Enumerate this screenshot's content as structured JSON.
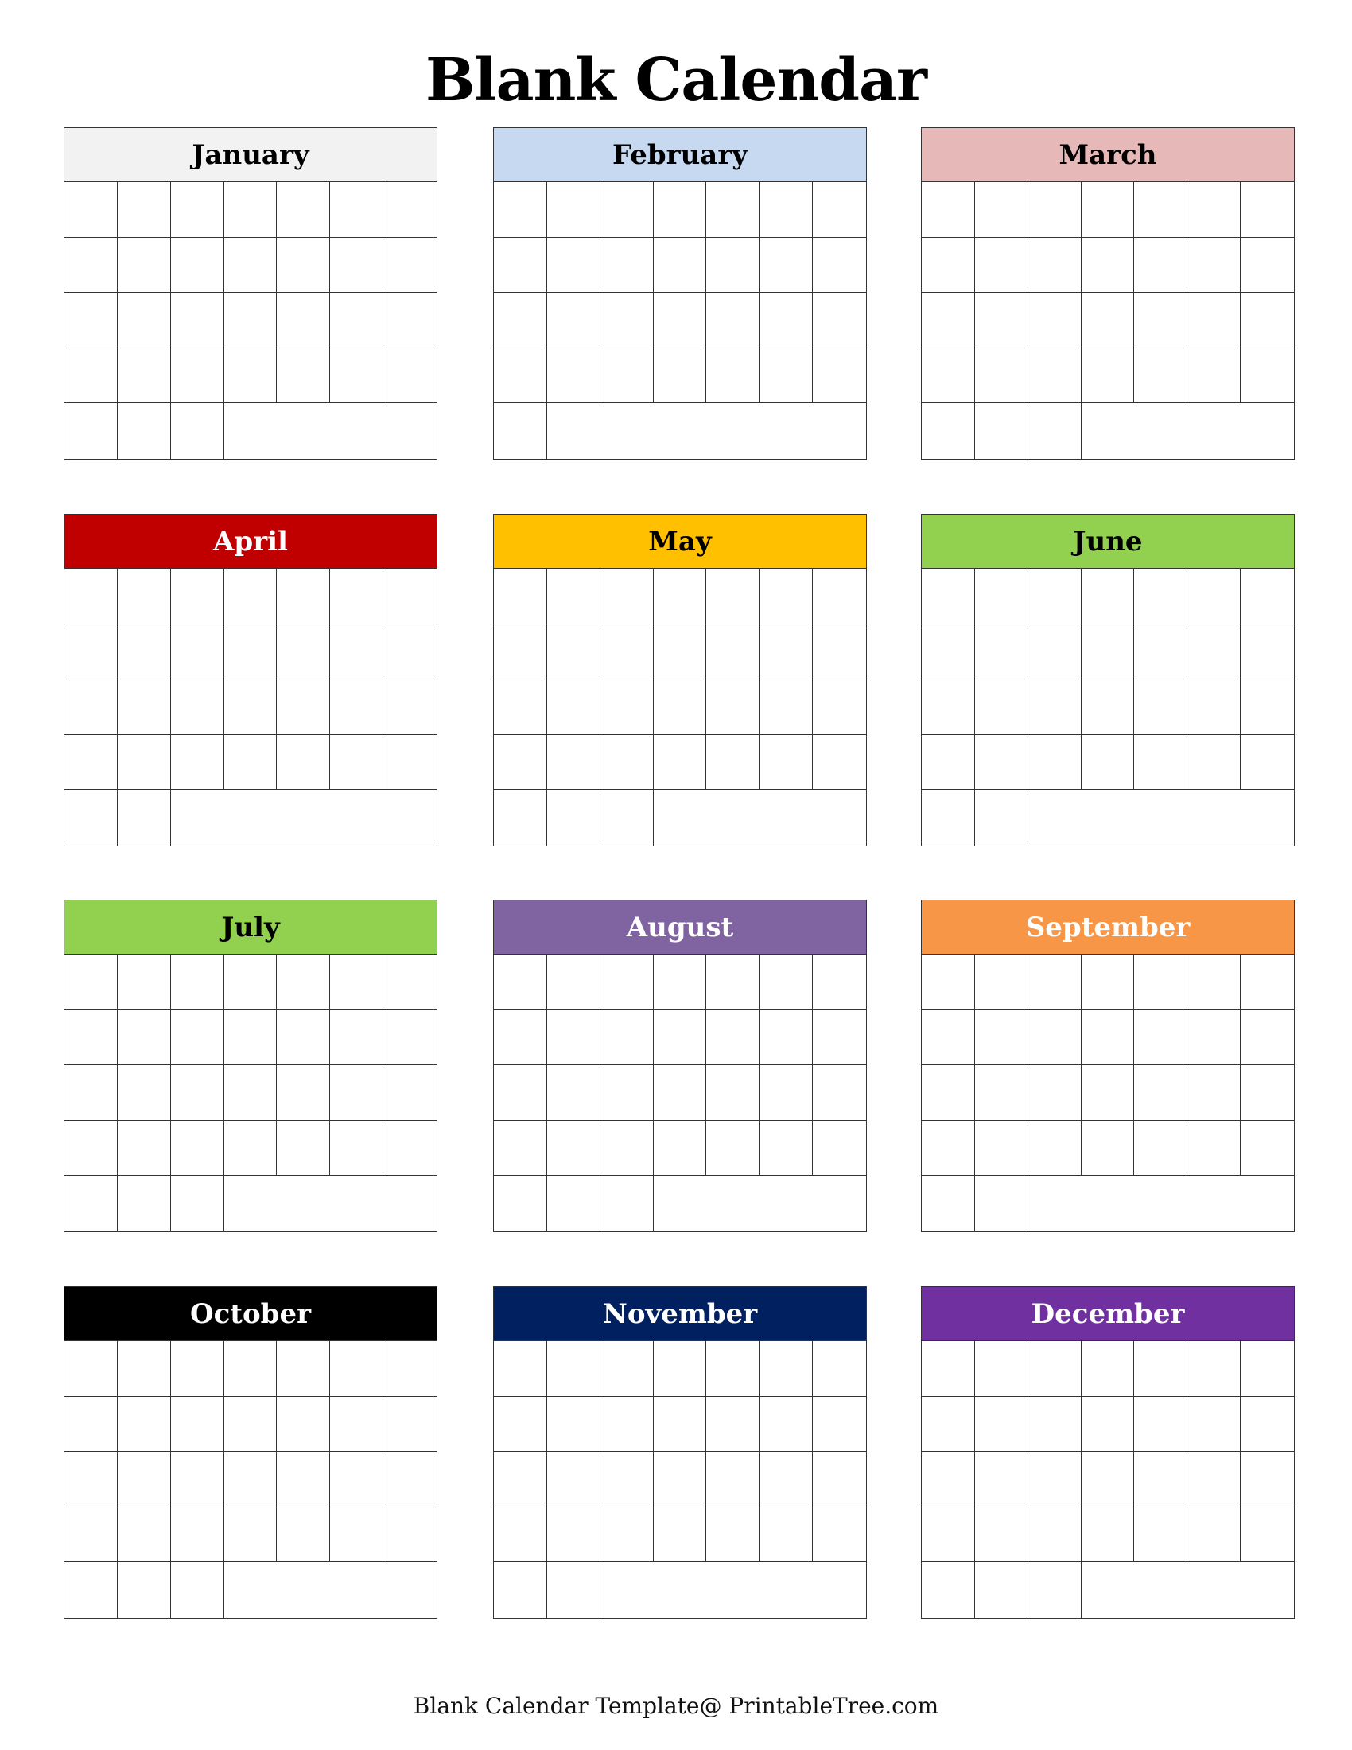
{
  "title": "Blank Calendar",
  "footer": "Blank Calendar Template@ PrintableTree.com",
  "months": [
    {
      "name": "January",
      "color": "#f2f2f2",
      "text_color": "#000000",
      "last_row_cells": 3
    },
    {
      "name": "February",
      "color": "#c6d9f1",
      "text_color": "#000000",
      "last_row_cells": 1
    },
    {
      "name": "March",
      "color": "#e6b8b7",
      "text_color": "#000000",
      "last_row_cells": 3
    },
    {
      "name": "April",
      "color": "#c00000",
      "text_color": "#ffffff",
      "last_row_cells": 2
    },
    {
      "name": "May",
      "color": "#ffc000",
      "text_color": "#000000",
      "last_row_cells": 3
    },
    {
      "name": "June",
      "color": "#92d050",
      "text_color": "#000000",
      "last_row_cells": 2
    },
    {
      "name": "July",
      "color": "#92d050",
      "text_color": "#000000",
      "last_row_cells": 3
    },
    {
      "name": "August",
      "color": "#8064a2",
      "text_color": "#ffffff",
      "last_row_cells": 3
    },
    {
      "name": "September",
      "color": "#f79646",
      "text_color": "#ffffff",
      "last_row_cells": 2
    },
    {
      "name": "October",
      "color": "#000000",
      "text_color": "#ffffff",
      "last_row_cells": 3
    },
    {
      "name": "November",
      "color": "#002060",
      "text_color": "#ffffff",
      "last_row_cells": 2
    },
    {
      "name": "December",
      "color": "#7030a0",
      "text_color": "#ffffff",
      "last_row_cells": 3
    }
  ]
}
